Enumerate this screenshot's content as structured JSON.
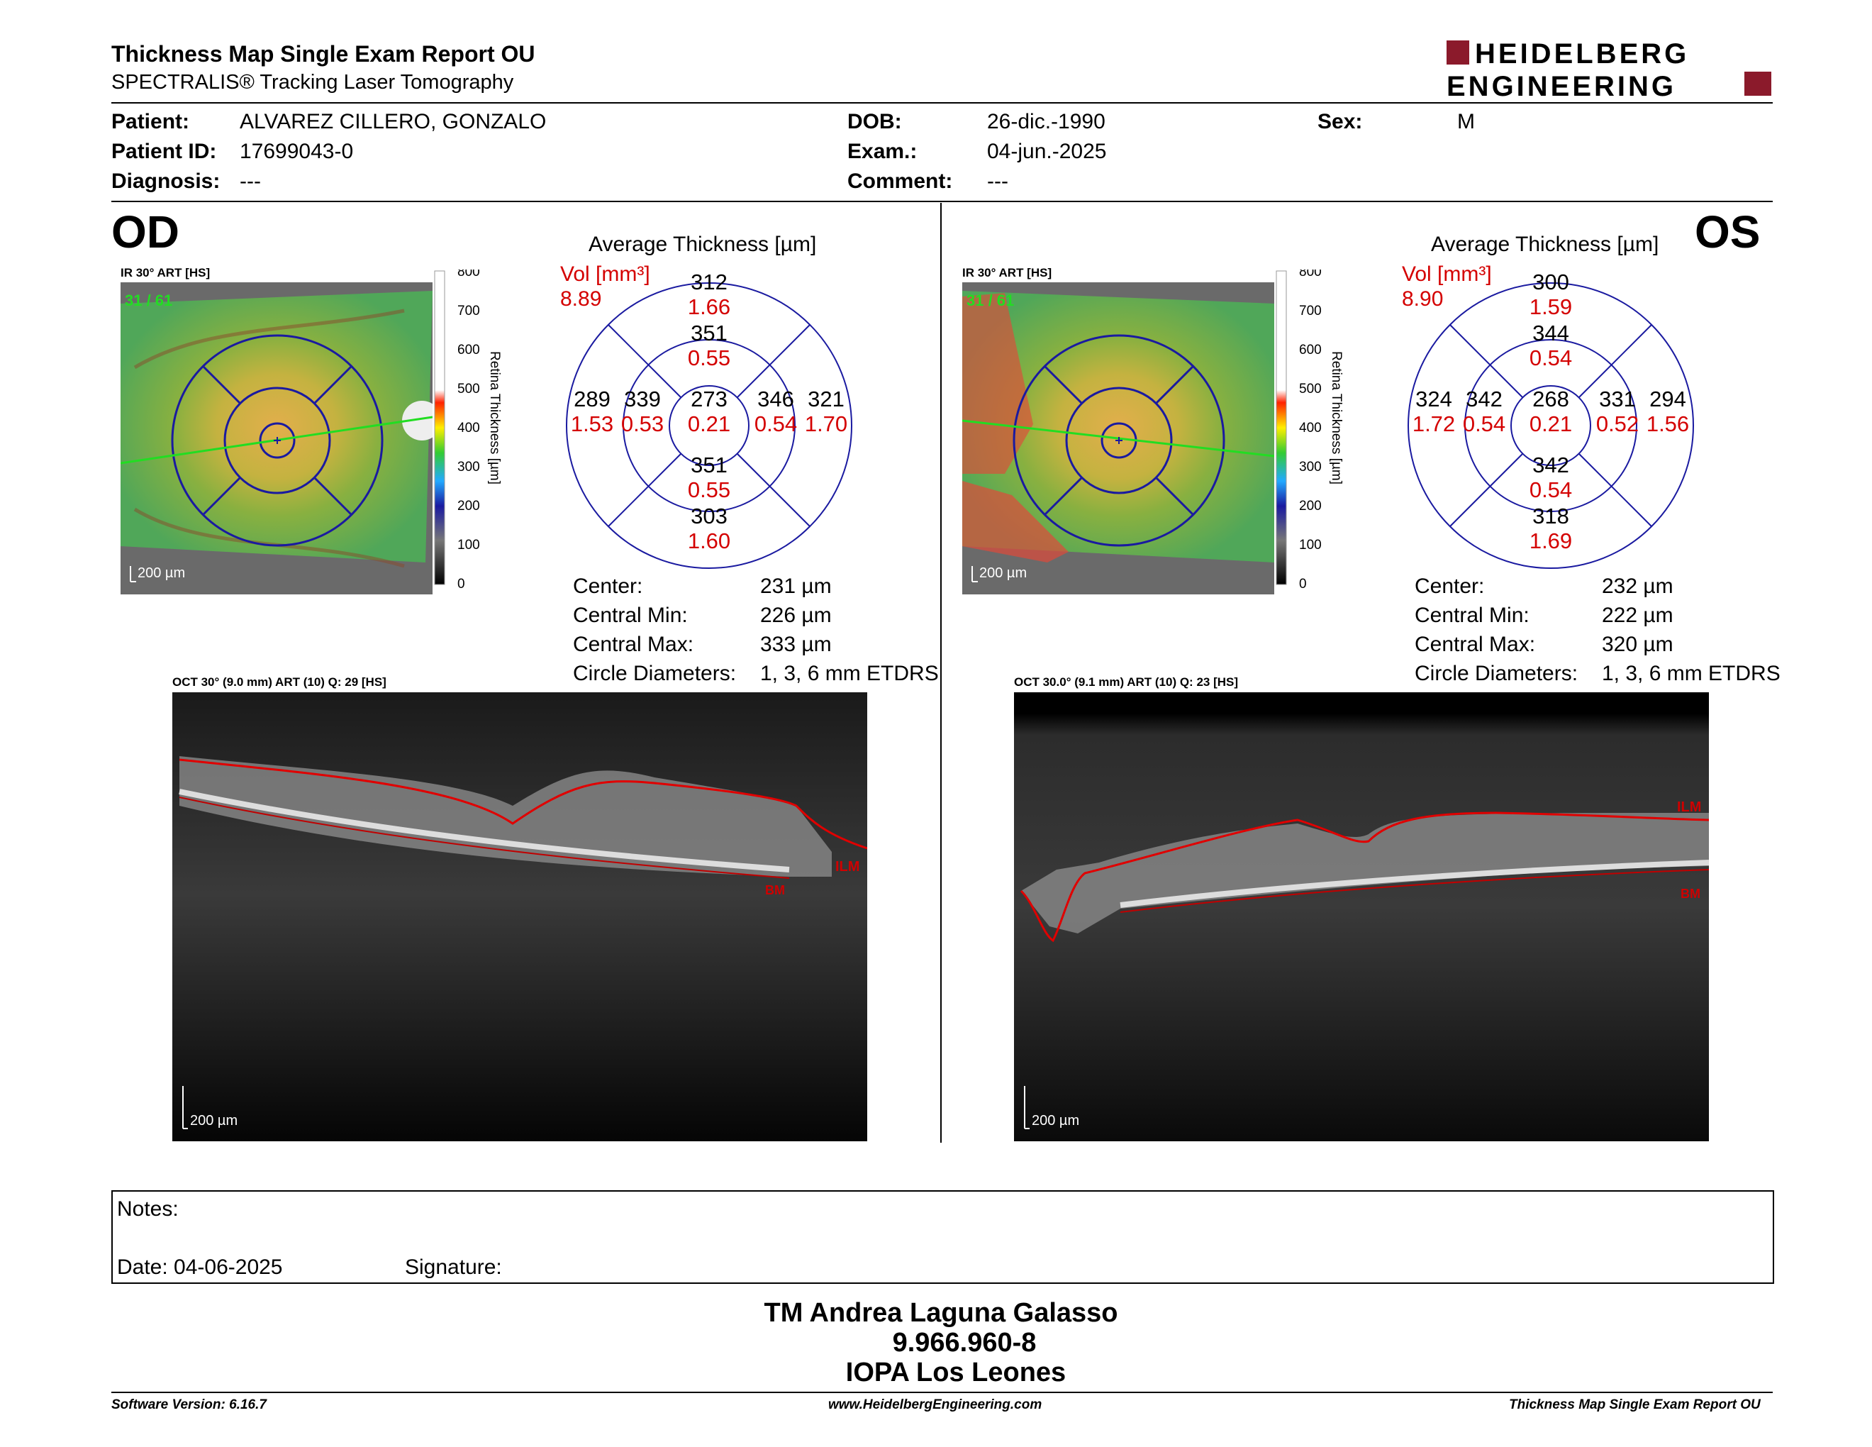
{
  "header": {
    "title": "Thickness Map Single Exam Report OU",
    "subtitle": "SPECTRALIS® Tracking Laser Tomography",
    "logo_line1": "HEIDELBERG",
    "logo_line2": "ENGINEERING",
    "brand_color": "#8b1a2b"
  },
  "patient": {
    "patient_label": "Patient:",
    "patient_value": "ALVAREZ CILLERO, GONZALO",
    "id_label": "Patient ID:",
    "id_value": "17699043-0",
    "diagnosis_label": "Diagnosis:",
    "diagnosis_value": "---",
    "dob_label": "DOB:",
    "dob_value": "26-dic.-1990",
    "exam_label": "Exam.:",
    "exam_value": "04-jun.-2025",
    "comment_label": "Comment:",
    "comment_value": "---",
    "sex_label": "Sex:",
    "sex_value": "M"
  },
  "colorbar": {
    "ticks": [
      "800",
      "700",
      "600",
      "500",
      "400",
      "300",
      "200",
      "100",
      "0"
    ],
    "label": "Retina  Thickness [µm]"
  },
  "od": {
    "eye": "OD",
    "ir_label": "IR 30° ART [HS]",
    "frame": "31 / 61",
    "ir_scale": "200 µm",
    "avg_title": "Average Thickness [µm]",
    "vol_label": "Vol [mm³]",
    "vol_value": "8.89",
    "sectors": {
      "outer_sup": "312",
      "outer_sup_vol": "1.66",
      "inner_sup": "351",
      "inner_sup_vol": "0.55",
      "outer_nas": "289",
      "outer_nas_vol": "1.53",
      "inner_nas": "339",
      "inner_nas_vol": "0.53",
      "center": "273",
      "center_vol": "0.21",
      "inner_temp": "346",
      "inner_temp_vol": "0.54",
      "outer_temp": "321",
      "outer_temp_vol": "1.70",
      "inner_inf": "351",
      "inner_inf_vol": "0.55",
      "outer_inf": "303",
      "outer_inf_vol": "1.60"
    },
    "stats": {
      "center_label": "Center:",
      "center_value": "231 µm",
      "min_label": "Central Min:",
      "min_value": "226 µm",
      "max_label": "Central Max:",
      "max_value": "333 µm",
      "diam_label": "Circle Diameters:",
      "diam_value": "1, 3, 6 mm ETDRS"
    },
    "oct_label": "OCT 30° (9.0 mm) ART (10) Q: 29 [HS]",
    "ilm": "ILM",
    "bm": "BM",
    "oct_scale": "200 µm"
  },
  "os": {
    "eye": "OS",
    "ir_label": "IR 30° ART [HS]",
    "frame": "31 / 61",
    "ir_scale": "200 µm",
    "avg_title": "Average Thickness [µm]",
    "vol_label": "Vol [mm³]",
    "vol_value": "8.90",
    "sectors": {
      "outer_sup": "300",
      "outer_sup_vol": "1.59",
      "inner_sup": "344",
      "inner_sup_vol": "0.54",
      "outer_nas": "324",
      "outer_nas_vol": "1.72",
      "inner_nas": "342",
      "inner_nas_vol": "0.54",
      "center": "268",
      "center_vol": "0.21",
      "inner_temp": "331",
      "inner_temp_vol": "0.52",
      "outer_temp": "294",
      "outer_temp_vol": "1.56",
      "inner_inf": "342",
      "inner_inf_vol": "0.54",
      "outer_inf": "318",
      "outer_inf_vol": "1.69"
    },
    "stats": {
      "center_label": "Center:",
      "center_value": "232 µm",
      "min_label": "Central Min:",
      "min_value": "222 µm",
      "max_label": "Central Max:",
      "max_value": "320 µm",
      "diam_label": "Circle Diameters:",
      "diam_value": "1, 3, 6 mm ETDRS"
    },
    "oct_label": "OCT 30.0° (9.1 mm) ART (10) Q: 23 [HS]",
    "ilm": "ILM",
    "bm": "BM",
    "oct_scale": "200 µm"
  },
  "notes": {
    "notes_label": "Notes:",
    "date_label": "Date: 04-06-2025",
    "signature_label": "Signature:"
  },
  "signature": {
    "line1": "TM Andrea Laguna Galasso",
    "line2": "9.966.960-8",
    "line3": "IOPA Los Leones"
  },
  "footer": {
    "software": "Software Version: 6.16.7",
    "website": "www.HeidelbergEngineering.com",
    "report": "Thickness Map Single Exam Report OU"
  }
}
